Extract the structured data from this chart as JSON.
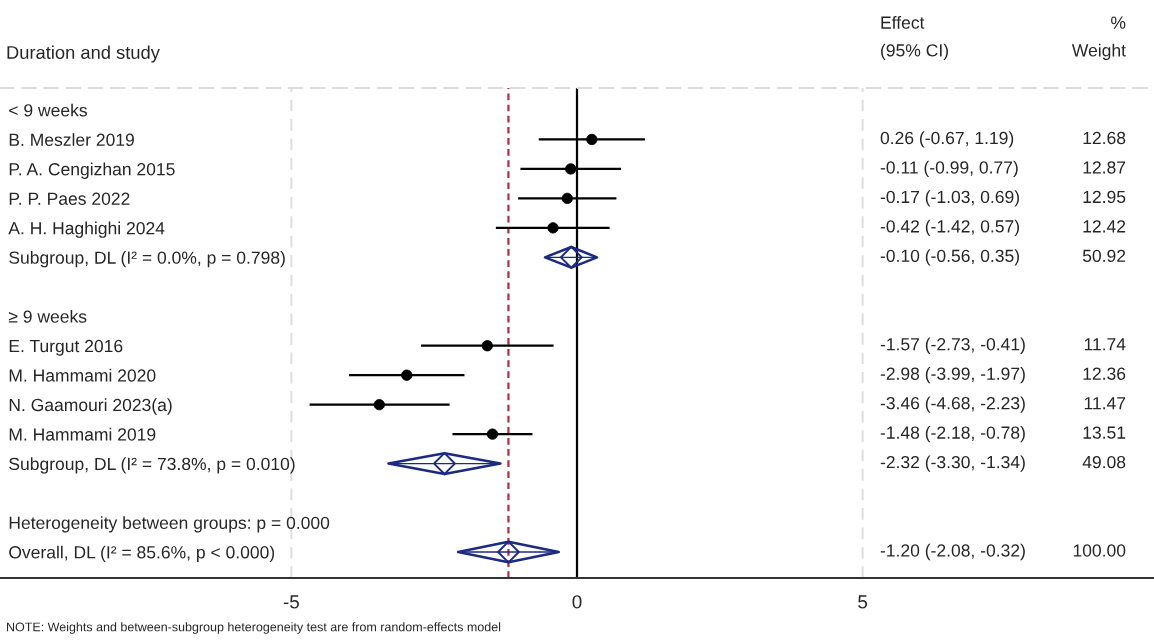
{
  "chart_data": {
    "type": "scatter",
    "orientation": "horizontal",
    "ylabel": "Duration and study",
    "categories": [
      "< 9 weeks",
      "B. Meszler 2019",
      "P. A. Cengizhan 2015",
      "P. P. Paes 2022",
      "A. H. Haghighi 2024",
      "Subgroup, DL (I² = 0.0%, p = 0.798)",
      null,
      "≥ 9 weeks",
      "E. Turgut 2016",
      "M. Hammami 2020",
      "N. Gaamouri 2023(a)",
      "M. Hammami 2019",
      "Subgroup, DL (I² = 73.8%, p = 0.010)",
      null,
      "Heterogeneity between groups: p = 0.000",
      "Overall, DL (I² = 85.6%, p < 0.000)"
    ],
    "series": [
      {
        "color": "#000000",
        "marker": "circle",
        "values": [
          null,
          0.26,
          -0.11,
          -0.17,
          -0.42,
          null,
          null,
          null,
          -1.57,
          -2.98,
          -3.46,
          -1.48,
          null,
          null,
          null,
          null
        ],
        "errors": [
          null,
          [
            -0.67,
            1.19
          ],
          [
            -0.99,
            0.77
          ],
          [
            -1.03,
            0.69
          ],
          [
            -1.42,
            0.57
          ],
          null,
          null,
          null,
          [
            -2.73,
            -0.41
          ],
          [
            -3.99,
            -1.97
          ],
          [
            -4.68,
            -2.23
          ],
          [
            -2.18,
            -0.78
          ],
          null,
          null,
          null,
          null
        ]
      },
      {
        "color": "#1c2a80",
        "marker": "diamond",
        "values": [
          null,
          null,
          null,
          null,
          null,
          -0.1,
          null,
          null,
          null,
          null,
          null,
          null,
          -2.32,
          null,
          null,
          -1.2
        ],
        "errors": [
          null,
          null,
          null,
          null,
          null,
          [
            -0.56,
            0.35
          ],
          null,
          null,
          null,
          null,
          null,
          null,
          [
            -3.3,
            -1.34
          ],
          null,
          null,
          [
            -2.08,
            -0.32
          ]
        ]
      }
    ],
    "xlim": [
      -10.1,
      10.1
    ],
    "xticks": [
      -5,
      0,
      5
    ],
    "grid": "x",
    "ref_lines": [
      {
        "axis": "x",
        "value": 0,
        "color": "#000000",
        "line_style": "solid"
      },
      {
        "axis": "x",
        "value": -1.2,
        "color": "#b03040",
        "line_style": "dashed"
      }
    ],
    "annotations": [
      "Effect\n(95% CI)",
      "%\nWeight",
      "0.26 (-0.67, 1.19)",
      "12.68",
      "-0.11 (-0.99, 0.77)",
      "12.87",
      "-0.17 (-1.03, 0.69)",
      "12.95",
      "-0.42 (-1.42, 0.57)",
      "12.42",
      "-0.10 (-0.56, 0.35)",
      "50.92",
      "-1.57 (-2.73, -0.41)",
      "11.74",
      "-2.98 (-3.99, -1.97)",
      "12.36",
      "-3.46 (-4.68, -2.23)",
      "11.47",
      "-1.48 (-2.18, -0.78)",
      "13.51",
      "-2.32 (-3.30, -1.34)",
      "49.08",
      "-1.20 (-2.08, -0.32)",
      "100.00",
      "NOTE: Weights and between-subgroup heterogeneity test are from random-effects model"
    ]
  }
}
